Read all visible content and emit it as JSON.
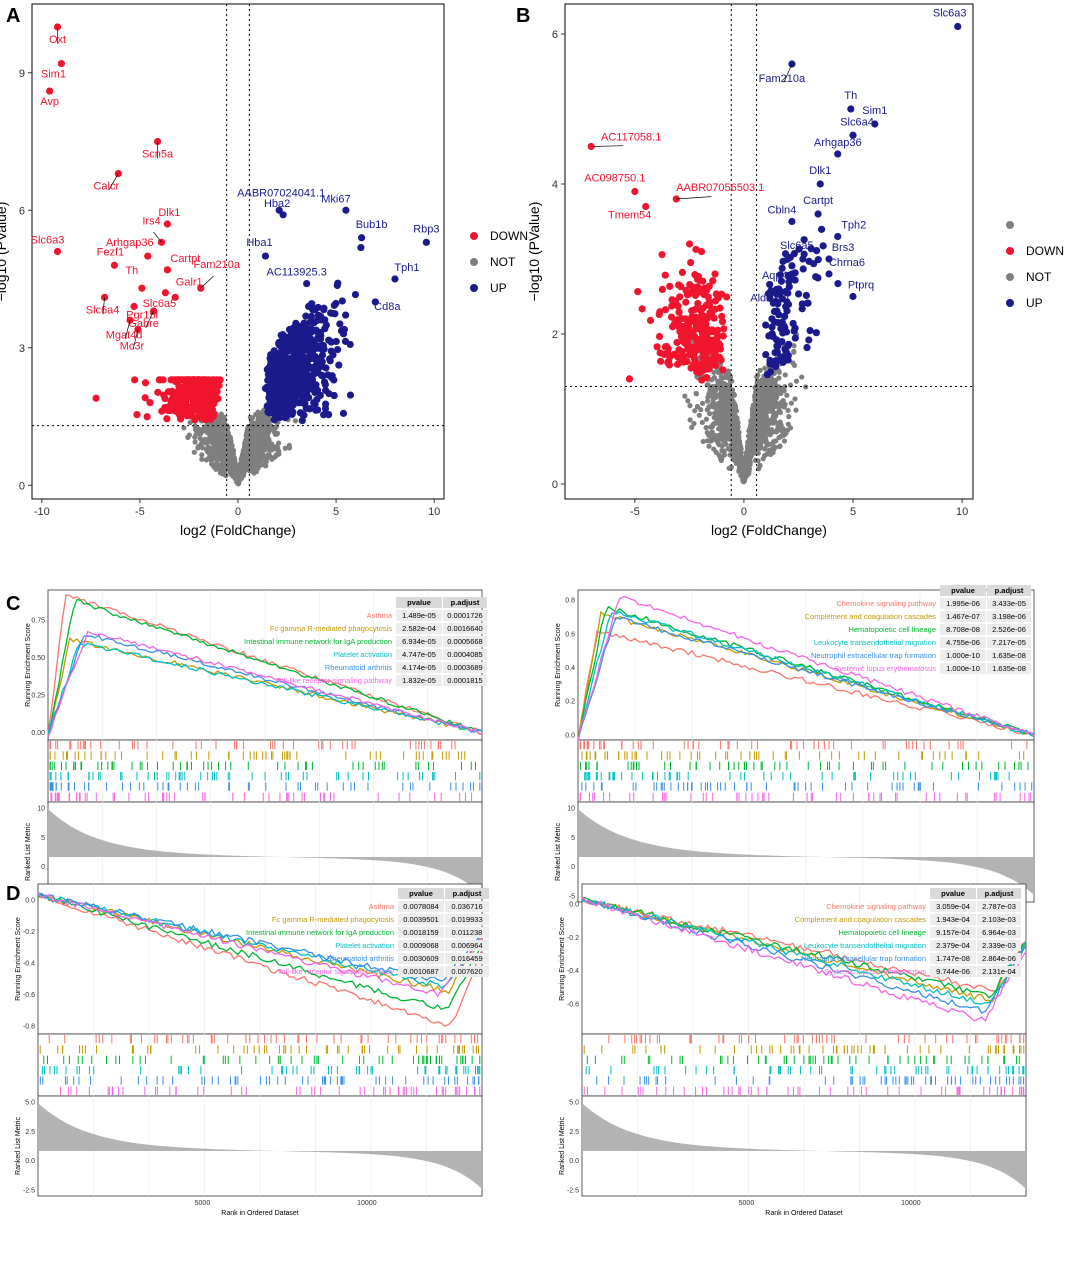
{
  "colors": {
    "down": "#f0142d",
    "not": "#7f7f7f",
    "up": "#1a1a8c",
    "gsea": [
      "#f8766d",
      "#c49a00",
      "#00b630",
      "#00bfc4",
      "#3a8fe6",
      "#f564e3"
    ]
  },
  "chart_data": [
    {
      "type": "scatter",
      "panel": "A",
      "title": "",
      "xlabel": "log2 (FoldChange)",
      "ylabel": "−log10 (PValue)",
      "xlim": [
        -10.5,
        10.5
      ],
      "ylim": [
        -0.3,
        10.5
      ],
      "xticks": [
        -10,
        -5,
        0,
        5,
        10
      ],
      "yticks": [
        0,
        3,
        6,
        9
      ],
      "vlines": [
        -0.58,
        0.58
      ],
      "hline": 1.3,
      "legend": [
        "DOWN",
        "NOT",
        "UP"
      ],
      "labeled_points": [
        {
          "gene": "Oxt",
          "x": -9.2,
          "y": 10.0,
          "group": "DOWN"
        },
        {
          "gene": "Sim1",
          "x": -9.0,
          "y": 9.2,
          "group": "DOWN"
        },
        {
          "gene": "Avp",
          "x": -9.6,
          "y": 8.6,
          "group": "DOWN"
        },
        {
          "gene": "Scn5a",
          "x": -4.1,
          "y": 7.5,
          "group": "DOWN"
        },
        {
          "gene": "Calcr",
          "x": -6.1,
          "y": 6.8,
          "group": "DOWN"
        },
        {
          "gene": "Dlk1",
          "x": -3.6,
          "y": 5.7,
          "group": "DOWN"
        },
        {
          "gene": "Slc6a3",
          "x": -9.2,
          "y": 5.1,
          "group": "DOWN"
        },
        {
          "gene": "Fezf1",
          "x": -6.3,
          "y": 4.8,
          "group": "DOWN"
        },
        {
          "gene": "Arhgap36",
          "x": -4.6,
          "y": 5.0,
          "group": "DOWN"
        },
        {
          "gene": "Irs4",
          "x": -3.9,
          "y": 5.3,
          "group": "DOWN"
        },
        {
          "gene": "Cartpt",
          "x": -3.6,
          "y": 4.7,
          "group": "DOWN"
        },
        {
          "gene": "Fam210a",
          "x": -1.9,
          "y": 4.3,
          "group": "DOWN"
        },
        {
          "gene": "Slc6a4",
          "x": -6.8,
          "y": 4.1,
          "group": "DOWN"
        },
        {
          "gene": "Th",
          "x": -4.9,
          "y": 4.3,
          "group": "DOWN"
        },
        {
          "gene": "Slc6a5",
          "x": -3.7,
          "y": 4.2,
          "group": "DOWN"
        },
        {
          "gene": "Galr1",
          "x": -3.2,
          "y": 4.1,
          "group": "DOWN"
        },
        {
          "gene": "Pgr15l",
          "x": -5.3,
          "y": 3.9,
          "group": "DOWN"
        },
        {
          "gene": "Gabre",
          "x": -4.3,
          "y": 3.8,
          "group": "DOWN"
        },
        {
          "gene": "Mgat4d",
          "x": -5.5,
          "y": 3.6,
          "group": "DOWN"
        },
        {
          "gene": "Mc3r",
          "x": -5.1,
          "y": 3.4,
          "group": "DOWN"
        },
        {
          "gene": "AABR07024041.1",
          "x": 2.1,
          "y": 6.0,
          "group": "UP"
        },
        {
          "gene": "Hba2",
          "x": 2.3,
          "y": 5.9,
          "group": "UP"
        },
        {
          "gene": "Mki67",
          "x": 5.5,
          "y": 6.0,
          "group": "UP"
        },
        {
          "gene": "Bub1b",
          "x": 6.3,
          "y": 5.4,
          "group": "UP"
        },
        {
          "gene": "Rbp3",
          "x": 9.6,
          "y": 5.3,
          "group": "UP"
        },
        {
          "gene": "Hba1",
          "x": 1.4,
          "y": 5.0,
          "group": "UP"
        },
        {
          "gene": "AC113925.3",
          "x": 3.5,
          "y": 4.4,
          "group": "UP"
        },
        {
          "gene": "Tph1",
          "x": 8.0,
          "y": 4.5,
          "group": "UP"
        },
        {
          "gene": "Cd8a",
          "x": 7.0,
          "y": 4.0,
          "group": "UP"
        }
      ]
    },
    {
      "type": "scatter",
      "panel": "B",
      "title": "",
      "xlabel": "log2 (FoldChange)",
      "ylabel": "−log10 (PValue)",
      "xlim": [
        -8.2,
        10.5
      ],
      "ylim": [
        -0.2,
        6.4
      ],
      "xticks": [
        -5,
        0,
        5,
        10
      ],
      "yticks": [
        0,
        2,
        4,
        6
      ],
      "vlines": [
        -0.58,
        0.58
      ],
      "hline": 1.3,
      "legend": [
        "",
        "DOWN",
        "NOT",
        "UP"
      ],
      "labeled_points": [
        {
          "gene": "Slc6a3",
          "x": 9.8,
          "y": 6.1,
          "group": "UP"
        },
        {
          "gene": "Fam210a",
          "x": 2.2,
          "y": 5.6,
          "group": "UP"
        },
        {
          "gene": "Th",
          "x": 4.9,
          "y": 5.0,
          "group": "UP"
        },
        {
          "gene": "Sim1",
          "x": 6.0,
          "y": 4.8,
          "group": "UP"
        },
        {
          "gene": "Slc6a4",
          "x": 5.0,
          "y": 4.65,
          "group": "UP"
        },
        {
          "gene": "Arhgap36",
          "x": 4.3,
          "y": 4.4,
          "group": "UP"
        },
        {
          "gene": "Dlk1",
          "x": 3.5,
          "y": 4.0,
          "group": "UP"
        },
        {
          "gene": "Cartpt",
          "x": 3.4,
          "y": 3.6,
          "group": "UP"
        },
        {
          "gene": "Cbln4",
          "x": 2.2,
          "y": 3.5,
          "group": "UP"
        },
        {
          "gene": "Tph2",
          "x": 4.3,
          "y": 3.3,
          "group": "UP"
        },
        {
          "gene": "Brs3",
          "x": 3.9,
          "y": 3.0,
          "group": "UP"
        },
        {
          "gene": "Slc6a5",
          "x": 2.7,
          "y": 3.0,
          "group": "UP"
        },
        {
          "gene": "Chrna6",
          "x": 3.9,
          "y": 2.8,
          "group": "UP"
        },
        {
          "gene": "Aqp4",
          "x": 1.6,
          "y": 2.6,
          "group": "UP"
        },
        {
          "gene": "Ptprq",
          "x": 5.0,
          "y": 2.5,
          "group": "UP"
        },
        {
          "gene": "Aldh1a1",
          "x": 1.4,
          "y": 2.3,
          "group": "UP"
        },
        {
          "gene": "AC117058.1",
          "x": -7.0,
          "y": 4.5,
          "group": "DOWN"
        },
        {
          "gene": "AC098750.1",
          "x": -5.0,
          "y": 3.9,
          "group": "DOWN"
        },
        {
          "gene": "AABR07056503.1",
          "x": -3.1,
          "y": 3.8,
          "group": "DOWN"
        },
        {
          "gene": "Tmem54",
          "x": -4.5,
          "y": 3.7,
          "group": "DOWN"
        }
      ]
    },
    {
      "type": "line",
      "panel": "C-left",
      "ylabel": "Running Enrichment Score",
      "xlabel": "Rank in Ordered Dataset",
      "metric_label": "Ranked List Metric",
      "es_ticks": [
        "0.00",
        "0.25",
        "0.50",
        "0.75"
      ],
      "es_range": [
        -0.05,
        0.95
      ],
      "metric_ticks": [
        "10",
        "5",
        "0",
        "-5"
      ],
      "rank_ticks": [
        "5000",
        "10000"
      ],
      "table_headers": [
        "pvalue",
        "p.adjust"
      ],
      "series": [
        {
          "name": "Asthma",
          "pvalue": "1.489e-05",
          "padj": "0.0001726",
          "peak": 0.92
        },
        {
          "name": "Fc gamma R-mediated phagocytosis",
          "pvalue": "2.582e-04",
          "padj": "0.0016640",
          "peak": 0.62
        },
        {
          "name": "Intestinal immune network for IgA production",
          "pvalue": "6.934e-05",
          "padj": "0.0005668",
          "peak": 0.88
        },
        {
          "name": "Platelet activation",
          "pvalue": "4.747e-05",
          "padj": "0.0004085",
          "peak": 0.6
        },
        {
          "name": "Rheumatoid arthritis",
          "pvalue": "4.174e-05",
          "padj": "0.0003689",
          "peak": 0.66
        },
        {
          "name": "Toll-like receptor signaling pathway",
          "pvalue": "1.832e-05",
          "padj": "0.0001815",
          "peak": 0.68
        }
      ]
    },
    {
      "type": "line",
      "panel": "C-right",
      "ylabel": "Running Enrichment Score",
      "xlabel": "Rank in Ordered Dataset",
      "metric_label": "Ranked List Metric",
      "es_ticks": [
        "0.0",
        "0.2",
        "0.4",
        "0.6",
        "0.8"
      ],
      "es_range": [
        -0.03,
        0.86
      ],
      "metric_ticks": [
        "10",
        "5",
        "0",
        "-5"
      ],
      "rank_ticks": [
        "5000",
        "10000"
      ],
      "table_headers": [
        "pvalue",
        "p.adjust"
      ],
      "series": [
        {
          "name": "Chemokine signaling pathway",
          "pvalue": "1.995e-06",
          "padj": "3.433e-05",
          "peak": 0.62
        },
        {
          "name": "Complement and coagulation cascades",
          "pvalue": "1.467e-07",
          "padj": "3.198e-06",
          "peak": 0.72
        },
        {
          "name": "Hematopoietic cell lineage",
          "pvalue": "8.708e-08",
          "padj": "2.526e-06",
          "peak": 0.76
        },
        {
          "name": "Leukocyte transendothelial migration",
          "pvalue": "4.755e-06",
          "padj": "7.217e-05",
          "peak": 0.74
        },
        {
          "name": "Neutrophil extracellular trap formation",
          "pvalue": "1.000e-10",
          "padj": "1.635e-08",
          "peak": 0.7
        },
        {
          "name": "Systemic lupus erythematosus",
          "pvalue": "1.000e-10",
          "padj": "1.635e-08",
          "peak": 0.82
        }
      ]
    },
    {
      "type": "line",
      "panel": "D-left",
      "ylabel": "Running Enrichment Score",
      "xlabel": "Rank in Ordered Dataset",
      "metric_label": "Ranked List Metric",
      "es_ticks": [
        "0.0",
        "-0.2",
        "-0.4",
        "-0.6",
        "-0.8"
      ],
      "es_range": [
        -0.85,
        0.1
      ],
      "metric_ticks": [
        "5.0",
        "2.5",
        "0.0",
        "-2.5"
      ],
      "rank_ticks": [
        "5000",
        "10000"
      ],
      "table_headers": [
        "pvalue",
        "p.adjust"
      ],
      "series": [
        {
          "name": "Asthma",
          "pvalue": "0.0078084",
          "padj": "0.036716",
          "trough": -0.8
        },
        {
          "name": "Fc gamma R-mediated phagocytosis",
          "pvalue": "0.0039501",
          "padj": "0.019933",
          "trough": -0.58
        },
        {
          "name": "Intestinal immune network for IgA production",
          "pvalue": "0.0018159",
          "padj": "0.011238",
          "trough": -0.7
        },
        {
          "name": "Platelet activation",
          "pvalue": "0.0009068",
          "padj": "0.006964",
          "trough": -0.55
        },
        {
          "name": "Rheumatoid arthritis",
          "pvalue": "0.0030609",
          "padj": "0.016459",
          "trough": -0.52
        },
        {
          "name": "Toll-like receptor signaling pathway",
          "pvalue": "0.0010687",
          "padj": "0.007620",
          "trough": -0.6
        }
      ]
    },
    {
      "type": "line",
      "panel": "D-right",
      "ylabel": "Running Enrichment Score",
      "xlabel": "Rank in Ordered Dataset",
      "metric_label": "Ranked List Metric",
      "es_ticks": [
        "0.0",
        "-0.2",
        "-0.4",
        "-0.6"
      ],
      "es_range": [
        -0.78,
        0.12
      ],
      "metric_ticks": [
        "5.0",
        "2.5",
        "0.0",
        "-2.5"
      ],
      "rank_ticks": [
        "5000",
        "10000"
      ],
      "table_headers": [
        "pvalue",
        "p.adjust"
      ],
      "series": [
        {
          "name": "Chemokine signaling pathway",
          "pvalue": "3.059e-04",
          "padj": "2.787e-03",
          "trough": -0.52
        },
        {
          "name": "Complement and coagulation cascades",
          "pvalue": "1.943e-04",
          "padj": "2.103e-03",
          "trough": -0.58
        },
        {
          "name": "Hematopoietic cell lineage",
          "pvalue": "9.157e-04",
          "padj": "6.964e-03",
          "trough": -0.55
        },
        {
          "name": "Leukocyte transendothelial migration",
          "pvalue": "2.379e-04",
          "padj": "2.339e-03",
          "trough": -0.6
        },
        {
          "name": "Neutrophil extracellular trap formation",
          "pvalue": "1.747e-08",
          "padj": "2.864e-06",
          "trough": -0.65
        },
        {
          "name": "Systemic lupus erythematosus",
          "pvalue": "9.744e-06",
          "padj": "2.131e-04",
          "trough": -0.7
        }
      ]
    }
  ],
  "panel_letters": [
    "A",
    "B",
    "C",
    "D"
  ]
}
